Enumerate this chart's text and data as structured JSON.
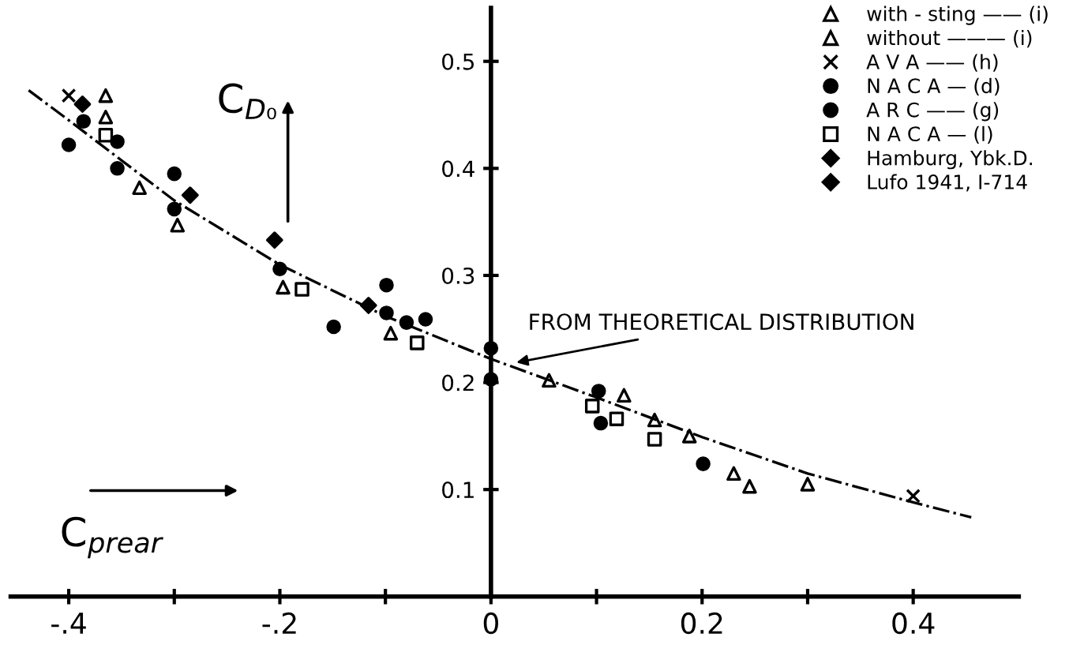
{
  "chart_data": {
    "type": "scatter",
    "xlabel": "C$_{prear}$",
    "ylabel": "C$_{D₀}$",
    "xlim": [
      -0.455,
      0.5
    ],
    "ylim": [
      0,
      0.55
    ],
    "xticks": [
      {
        "value": -0.4,
        "label": "-.4"
      },
      {
        "value": -0.3,
        "label": null
      },
      {
        "value": -0.2,
        "label": "-.2"
      },
      {
        "value": -0.1,
        "label": null
      },
      0,
      {
        "value": 0.1,
        "label": null
      },
      0.2,
      {
        "value": 0.3,
        "label": null
      },
      0.4
    ],
    "yticks": [
      0.1,
      0.2,
      0.3,
      0.4,
      0.5
    ],
    "grid": false,
    "legend": "top right",
    "series": [
      {
        "name": "with - sting —— (i)",
        "color": "#000000",
        "marker": "triangle",
        "x": [
          0.188,
          0.23
        ],
        "values": [
          0.15,
          0.115
        ]
      },
      {
        "name": "without ——— (i)",
        "color": "#000000",
        "marker": "triangle",
        "x": [
          -0.365,
          -0.365,
          -0.333,
          -0.297,
          -0.197,
          -0.095,
          0.055,
          0.126,
          0.155,
          0.245,
          0.3
        ],
        "values": [
          0.468,
          0.448,
          0.382,
          0.347,
          0.289,
          0.246,
          0.202,
          0.188,
          0.165,
          0.103,
          0.105
        ]
      },
      {
        "name": "A V A —— (h)",
        "color": "#000000",
        "marker": "cross",
        "x": [
          -0.4,
          0.4
        ],
        "values": [
          0.468,
          0.094
        ]
      },
      {
        "name": "N A C A — (d)",
        "color": "#000000",
        "marker": "circle",
        "x": [
          -0.386,
          -0.4,
          -0.354,
          -0.354,
          -0.3,
          -0.3,
          -0.149,
          -0.099,
          -0.099,
          -0.08,
          -0.062,
          0,
          0,
          0.102,
          0.104,
          0.201
        ],
        "values": [
          0.444,
          0.422,
          0.425,
          0.4,
          0.395,
          0.362,
          0.252,
          0.291,
          0.265,
          0.256,
          0.259,
          0.232,
          0.203,
          0.192,
          0.162,
          0.124
        ]
      },
      {
        "name": "A R C —— (g)",
        "color": "#000000",
        "marker": "circle",
        "x": [
          -0.2
        ],
        "values": [
          0.306
        ]
      },
      {
        "name": "N A C A — (l)",
        "color": "#000000",
        "marker": "square",
        "x": [
          -0.365,
          -0.179,
          -0.07,
          0.096,
          0.119,
          0.155
        ],
        "values": [
          0.431,
          0.287,
          0.237,
          0.178,
          0.166,
          0.147
        ]
      },
      {
        "name": "Hamburg, Ybk.D.",
        "color": "#000000",
        "marker": "diamond",
        "x": [
          -0.285,
          -0.205
        ],
        "values": [
          0.375,
          0.333
        ]
      },
      {
        "name": "Lufo 1941, I-714",
        "color": "#000000",
        "marker": "diamond",
        "x": [
          -0.387,
          -0.116
        ],
        "values": [
          0.46,
          0.272
        ]
      },
      {
        "type": "line",
        "color": "#000000",
        "marker": "none",
        "line_style": "dashdot",
        "x": [
          -0.438,
          -0.4,
          -0.3,
          -0.2,
          -0.1,
          0,
          0.1,
          0.2,
          0.3,
          0.4,
          0.455
        ],
        "values": [
          0.473,
          0.445,
          0.37,
          0.31,
          0.262,
          0.222,
          0.186,
          0.149,
          0.115,
          0.088,
          0.074
        ]
      }
    ],
    "annotations": [
      {
        "text": "FROM THEORETICAL DISTRIBUTION",
        "x": 0.02,
        "y": 0.218
      }
    ]
  }
}
